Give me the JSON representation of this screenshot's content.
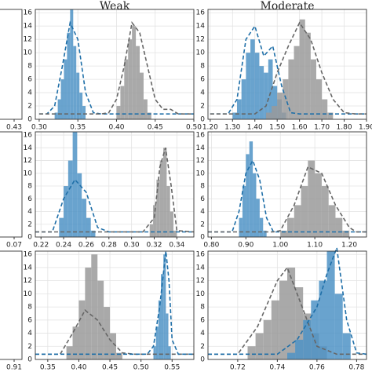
{
  "chart_data": [
    {
      "type": "histogram",
      "title": "Weak",
      "grid": true,
      "xlim": [
        0.295,
        0.5
      ],
      "xticks": [
        {
          "value": 0.3,
          "label": "0.30"
        },
        {
          "value": 0.35,
          "label": "0.35"
        },
        {
          "value": 0.4,
          "label": "0.40"
        },
        {
          "value": 0.45,
          "label": "0.45"
        },
        {
          "value": 0.5,
          "label": "0.50"
        }
      ],
      "ylim": [
        0,
        16.5
      ],
      "yticks": [
        0,
        2,
        4,
        6,
        8,
        10,
        12,
        14,
        16
      ],
      "series": [
        {
          "color": "#4f93c5",
          "bins": [
            0.32,
            0.324,
            0.328,
            0.332,
            0.336,
            0.34,
            0.344,
            0.348,
            0.352,
            0.356,
            0.36
          ],
          "values": [
            1,
            3,
            6,
            9,
            13,
            17,
            11,
            7,
            4,
            2
          ]
        },
        {
          "color": "#9a9a9a",
          "bins": [
            0.4,
            0.405,
            0.41,
            0.415,
            0.42,
            0.425,
            0.43,
            0.435,
            0.44,
            0.445
          ],
          "values": [
            2,
            5,
            9,
            12,
            14,
            11,
            7,
            3,
            1
          ]
        }
      ],
      "lines": [
        {
          "color": "#1f6fa8",
          "x": [
            0.3,
            0.31,
            0.32,
            0.33,
            0.34,
            0.35,
            0.36,
            0.37,
            0.38,
            0.4,
            0.5
          ],
          "values": [
            0.8,
            0.8,
            2,
            8,
            14.5,
            12,
            4,
            1,
            0.8,
            0.8,
            0.8
          ]
        },
        {
          "color": "#666666",
          "x": [
            0.3,
            0.38,
            0.39,
            0.4,
            0.41,
            0.42,
            0.43,
            0.44,
            0.45,
            0.46,
            0.47,
            0.48,
            0.5
          ],
          "values": [
            0.8,
            0.8,
            1,
            3,
            8,
            14.5,
            13,
            8,
            3,
            1.5,
            1.5,
            0.8,
            0.8
          ]
        }
      ]
    },
    {
      "type": "histogram",
      "title": "Moderate",
      "grid": true,
      "xlim": [
        1.19,
        1.9
      ],
      "xticks": [
        {
          "value": 1.2,
          "label": "1.20"
        },
        {
          "value": 1.3,
          "label": "1.30"
        },
        {
          "value": 1.4,
          "label": "1.40"
        },
        {
          "value": 1.5,
          "label": "1.50"
        },
        {
          "value": 1.6,
          "label": "1.60"
        },
        {
          "value": 1.7,
          "label": "1.70"
        },
        {
          "value": 1.8,
          "label": "1.80"
        },
        {
          "value": 1.9,
          "label": "1.90"
        }
      ],
      "ylim": [
        0,
        16.5
      ],
      "yticks": [
        0,
        2,
        4,
        6,
        8,
        10,
        12,
        14,
        16
      ],
      "series": [
        {
          "color": "#4f93c5",
          "bins": [
            1.3,
            1.32,
            1.34,
            1.36,
            1.38,
            1.4,
            1.42,
            1.44,
            1.46,
            1.48,
            1.5,
            1.52,
            1.54
          ],
          "values": [
            1,
            3,
            6,
            10,
            12,
            10,
            8,
            7,
            9,
            5,
            3,
            1
          ]
        },
        {
          "color": "#9a9a9a",
          "bins": [
            1.45,
            1.475,
            1.5,
            1.525,
            1.55,
            1.575,
            1.6,
            1.625,
            1.65,
            1.675,
            1.7,
            1.725,
            1.75
          ],
          "values": [
            1,
            2,
            4,
            6,
            9,
            11,
            15,
            13,
            9,
            6,
            3,
            1
          ]
        }
      ],
      "lines": [
        {
          "color": "#1f6fa8",
          "x": [
            1.2,
            1.28,
            1.32,
            1.36,
            1.4,
            1.44,
            1.48,
            1.52,
            1.56,
            1.6,
            1.9
          ],
          "values": [
            0.8,
            0.8,
            3,
            12,
            14,
            9.5,
            11,
            5,
            1,
            0.8,
            0.8
          ]
        },
        {
          "color": "#666666",
          "x": [
            1.2,
            1.4,
            1.45,
            1.5,
            1.55,
            1.6,
            1.65,
            1.7,
            1.75,
            1.8,
            1.85,
            1.9
          ],
          "values": [
            0.8,
            0.8,
            2,
            7,
            11,
            14.5,
            12,
            7,
            3,
            1,
            0.8,
            0.8
          ]
        }
      ]
    },
    {
      "type": "histogram",
      "grid": true,
      "xlim": [
        0.215,
        0.355
      ],
      "xticks": [
        0.22,
        0.24,
        0.26,
        0.28,
        {
          "value": 0.3,
          "label": "0.30"
        },
        0.32,
        0.34
      ],
      "ylim": [
        0,
        16.5
      ],
      "yticks": [
        0,
        2,
        4,
        6,
        8,
        10,
        12,
        14,
        16
      ],
      "series": [
        {
          "color": "#4f93c5",
          "bins": [
            0.236,
            0.24,
            0.244,
            0.248,
            0.252,
            0.256,
            0.26,
            0.264,
            0.268
          ],
          "values": [
            3,
            8,
            12,
            17,
            10,
            6,
            3,
            1
          ]
        },
        {
          "color": "#9a9a9a",
          "bins": [
            0.316,
            0.319,
            0.322,
            0.325,
            0.328,
            0.331,
            0.334,
            0.337,
            0.34
          ],
          "values": [
            2,
            5,
            9,
            12,
            14,
            8,
            4,
            1
          ]
        }
      ],
      "lines": [
        {
          "color": "#1f6fa8",
          "x": [
            0.215,
            0.23,
            0.24,
            0.25,
            0.26,
            0.27,
            0.28,
            0.355
          ],
          "values": [
            0.8,
            0.8,
            6,
            9,
            7,
            1.5,
            0.8,
            0.8
          ]
        },
        {
          "color": "#666666",
          "x": [
            0.215,
            0.31,
            0.32,
            0.325,
            0.33,
            0.335,
            0.34,
            0.355
          ],
          "values": [
            0.8,
            0.8,
            3,
            11,
            14,
            8,
            1,
            0.8
          ]
        }
      ]
    },
    {
      "type": "histogram",
      "grid": true,
      "xlim": [
        0.79,
        1.25
      ],
      "xticks": [
        {
          "value": 0.8,
          "label": "0.80"
        },
        {
          "value": 0.9,
          "label": "0.90"
        },
        {
          "value": 1.0,
          "label": "1.00"
        },
        {
          "value": 1.1,
          "label": "1.10"
        },
        {
          "value": 1.2,
          "label": "1.20"
        }
      ],
      "ylim": [
        0,
        16.5
      ],
      "yticks": [
        0,
        2,
        4,
        6,
        8,
        10,
        12,
        14,
        16
      ],
      "series": [
        {
          "color": "#4f93c5",
          "bins": [
            0.88,
            0.89,
            0.9,
            0.91,
            0.92,
            0.93,
            0.94,
            0.95,
            0.96
          ],
          "values": [
            3,
            8,
            13,
            15,
            10,
            6,
            3,
            1
          ]
        },
        {
          "color": "#9a9a9a",
          "bins": [
            1.0,
            1.02,
            1.04,
            1.06,
            1.08,
            1.1,
            1.12,
            1.14,
            1.16,
            1.18,
            1.2
          ],
          "values": [
            1,
            3,
            5,
            8,
            12,
            10,
            8,
            5,
            3,
            1
          ]
        }
      ],
      "lines": [
        {
          "color": "#1f6fa8",
          "x": [
            0.79,
            0.86,
            0.88,
            0.9,
            0.92,
            0.94,
            0.96,
            0.98,
            1.25
          ],
          "values": [
            0.8,
            0.8,
            4,
            10,
            12,
            9,
            3,
            0.8,
            0.8
          ]
        },
        {
          "color": "#666666",
          "x": [
            0.79,
            0.98,
            1.0,
            1.04,
            1.08,
            1.12,
            1.16,
            1.2,
            1.22,
            1.25
          ],
          "values": [
            0.8,
            0.8,
            1,
            5,
            11,
            10,
            5,
            1.5,
            0.8,
            0.8
          ]
        }
      ]
    },
    {
      "type": "histogram",
      "grid": true,
      "xlim": [
        0.33,
        0.585
      ],
      "xticks": [
        0.35,
        {
          "value": 0.4,
          "label": "0.40"
        },
        0.45,
        {
          "value": 0.5,
          "label": "0.50"
        },
        0.55
      ],
      "ylim": [
        0,
        16.5
      ],
      "yticks": [
        0,
        2,
        4,
        6,
        8,
        10,
        12,
        14,
        16
      ],
      "series": [
        {
          "color": "#9a9a9a",
          "bins": [
            0.38,
            0.39,
            0.4,
            0.41,
            0.42,
            0.43,
            0.44,
            0.45,
            0.46,
            0.47
          ],
          "values": [
            2,
            5,
            9,
            14,
            16,
            12,
            8,
            4,
            1
          ]
        },
        {
          "color": "#4f93c5",
          "bins": [
            0.52,
            0.524,
            0.528,
            0.532,
            0.536,
            0.54,
            0.544,
            0.548
          ],
          "values": [
            2,
            5,
            9,
            13,
            16,
            7,
            2
          ]
        }
      ],
      "lines": [
        {
          "color": "#666666",
          "x": [
            0.33,
            0.37,
            0.39,
            0.41,
            0.43,
            0.45,
            0.47,
            0.49,
            0.585
          ],
          "values": [
            0.8,
            0.8,
            4,
            7.5,
            6,
            3,
            1,
            0.8,
            0.8
          ]
        },
        {
          "color": "#1f6fa8",
          "x": [
            0.33,
            0.51,
            0.52,
            0.53,
            0.54,
            0.545,
            0.55,
            0.56,
            0.585
          ],
          "values": [
            0.8,
            0.8,
            2,
            8,
            16.5,
            12,
            3,
            0.8,
            0.8
          ]
        }
      ]
    },
    {
      "type": "histogram",
      "grid": true,
      "xlim": [
        0.705,
        0.785
      ],
      "xticks": [
        0.72,
        0.74,
        0.76,
        0.78
      ],
      "ylim": [
        0,
        16.5
      ],
      "yticks": [
        0,
        2,
        4,
        6,
        8,
        10,
        12,
        14,
        16
      ],
      "series": [
        {
          "color": "#9a9a9a",
          "bins": [
            0.725,
            0.729,
            0.733,
            0.737,
            0.741,
            0.745,
            0.749,
            0.753,
            0.757,
            0.761,
            0.765
          ],
          "values": [
            2,
            4,
            6,
            9,
            12,
            14,
            11,
            7,
            4,
            2
          ]
        },
        {
          "color": "#4f93c5",
          "bins": [
            0.745,
            0.749,
            0.753,
            0.757,
            0.761,
            0.765,
            0.769,
            0.773,
            0.777
          ],
          "values": [
            1,
            3,
            6,
            9,
            12,
            17,
            10,
            4
          ]
        }
      ],
      "lines": [
        {
          "color": "#666666",
          "x": [
            0.705,
            0.72,
            0.73,
            0.74,
            0.745,
            0.75,
            0.76,
            0.77,
            0.785
          ],
          "values": [
            0.8,
            0.8,
            5,
            12,
            14,
            10,
            2,
            0.8,
            0.8
          ]
        },
        {
          "color": "#1f6fa8",
          "x": [
            0.705,
            0.74,
            0.75,
            0.76,
            0.765,
            0.77,
            0.775,
            0.78,
            0.785
          ],
          "values": [
            0.8,
            0.8,
            3,
            8,
            13,
            17,
            6,
            1,
            0.8
          ]
        }
      ]
    },
    {
      "type": "partial",
      "xticks": [
        0.43
      ]
    },
    {
      "type": "partial",
      "xticks": [
        0.07
      ]
    },
    {
      "type": "partial",
      "xticks": [
        0.91
      ]
    }
  ]
}
